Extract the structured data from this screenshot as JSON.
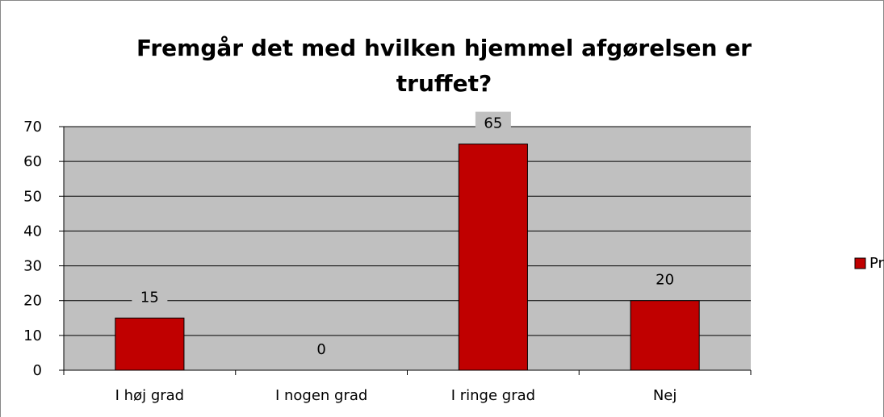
{
  "chart_data": {
    "type": "bar",
    "title": "Fremgår det med hvilken hjemmel afgørelsen er truffet?",
    "categories": [
      "I høj grad",
      "I nogen grad",
      "I ringe grad",
      "Nej"
    ],
    "series": [
      {
        "name": "Procent",
        "color": "#c00000",
        "values": [
          15,
          0,
          65,
          20
        ]
      }
    ],
    "ylim": [
      0,
      70
    ],
    "yticks": [
      0,
      10,
      20,
      30,
      40,
      50,
      60,
      70
    ],
    "grid": true,
    "legend": "right",
    "plot_background": "#c0c0c0"
  }
}
